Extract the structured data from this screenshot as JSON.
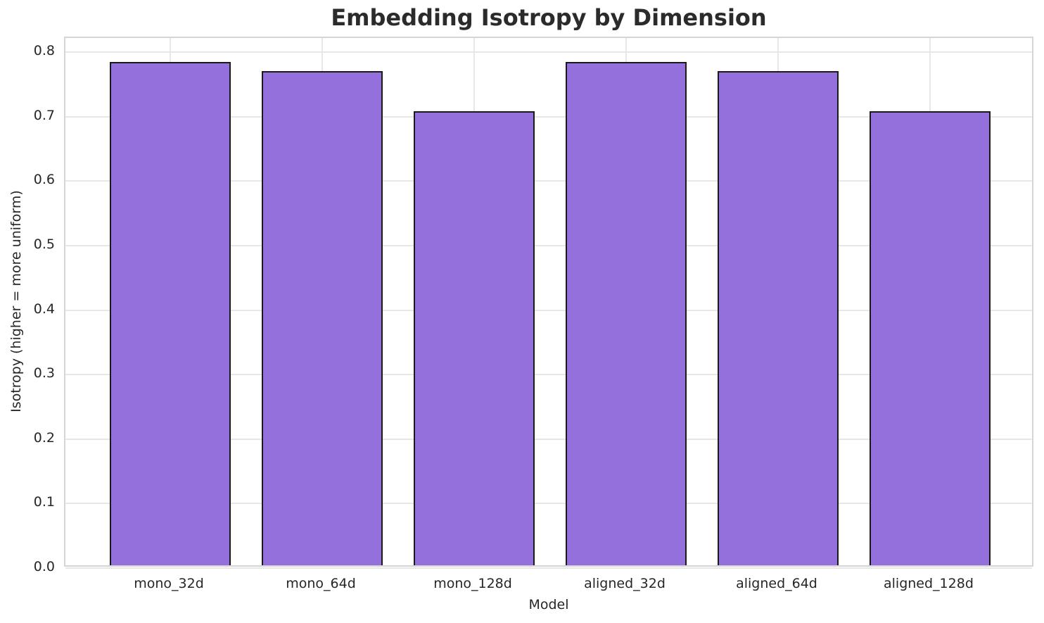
{
  "chart_data": {
    "type": "bar",
    "title": "Embedding Isotropy by Dimension",
    "xlabel": "Model",
    "ylabel": "Isotropy (higher = more uniform)",
    "categories": [
      "mono_32d",
      "mono_64d",
      "mono_128d",
      "aligned_32d",
      "aligned_64d",
      "aligned_128d"
    ],
    "values": [
      0.781,
      0.766,
      0.704,
      0.781,
      0.766,
      0.704
    ],
    "yticks": [
      0.0,
      0.1,
      0.2,
      0.3,
      0.4,
      0.5,
      0.6,
      0.7,
      0.8
    ],
    "ylim": [
      0,
      0.822
    ],
    "grid": true,
    "legend": null,
    "bar_color": "#9370DB",
    "bar_edge_color": "#1a1a1a",
    "grid_color": "#e7e7e7",
    "text_color": "#262626",
    "title_color": "#2b2b2b"
  }
}
